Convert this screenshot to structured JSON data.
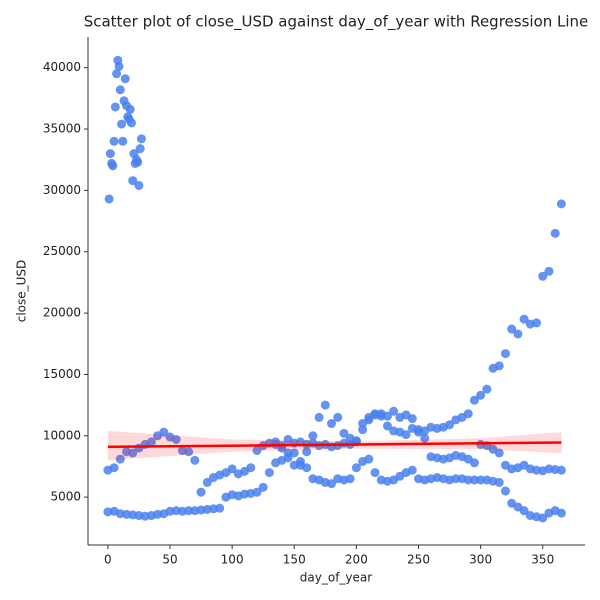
{
  "chart_data": {
    "type": "scatter",
    "title": "Scatter plot of close_USD against day_of_year with Regression Line",
    "xlabel": "day_of_year",
    "ylabel": "close_USD",
    "color": "#4a80ee",
    "line_color": "#ff0000",
    "xlim": [
      -16,
      384
    ],
    "ylim": [
      1100,
      42500
    ],
    "xticks": [
      0,
      50,
      100,
      150,
      200,
      250,
      300,
      350
    ],
    "yticks": [
      5000,
      10000,
      15000,
      20000,
      25000,
      30000,
      35000,
      40000
    ],
    "x": [
      0,
      5,
      10,
      15,
      20,
      25,
      30,
      35,
      40,
      45,
      50,
      55,
      60,
      65,
      70,
      75,
      80,
      85,
      90,
      95,
      100,
      105,
      110,
      115,
      120,
      125,
      130,
      135,
      140,
      145,
      150,
      155,
      160,
      165,
      170,
      175,
      180,
      185,
      190,
      195,
      200,
      205,
      210,
      215,
      220,
      225,
      230,
      235,
      240,
      245,
      250,
      255,
      260,
      265,
      270,
      275,
      280,
      285,
      290,
      295,
      300,
      305,
      310,
      315,
      320,
      325,
      330,
      335,
      340,
      345,
      350,
      355,
      360,
      365,
      0,
      5,
      10,
      15,
      20,
      25,
      30,
      35,
      40,
      45,
      50,
      55,
      60,
      65,
      70,
      75,
      80,
      85,
      90,
      95,
      100,
      105,
      110,
      115,
      120,
      125,
      130,
      135,
      140,
      145,
      150,
      155,
      160,
      165,
      170,
      175,
      180,
      185,
      190,
      195,
      200,
      205,
      210,
      215,
      220,
      225,
      230,
      235,
      240,
      245,
      250,
      255,
      260,
      265,
      270,
      275,
      280,
      285,
      290,
      295,
      300,
      305,
      310,
      315,
      320,
      325,
      330,
      335,
      340,
      345,
      350,
      355,
      360,
      365,
      135,
      140,
      145,
      150,
      155,
      160,
      165,
      170,
      175,
      180,
      185,
      190,
      195,
      200,
      205,
      210,
      215,
      220,
      225,
      230,
      235,
      240,
      245,
      250,
      255,
      260,
      265,
      270,
      275,
      280,
      285,
      290,
      295,
      300,
      305,
      310,
      315,
      320,
      325,
      330,
      335,
      340,
      345,
      350,
      355,
      360,
      365,
      1,
      2,
      3,
      4,
      5,
      6,
      7,
      8,
      9,
      10,
      11,
      12,
      13,
      14,
      15,
      16,
      17,
      18,
      19,
      20,
      21,
      22,
      23,
      24,
      25,
      26,
      27
    ],
    "values": [
      3800,
      3850,
      3650,
      3600,
      3550,
      3500,
      3450,
      3500,
      3600,
      3650,
      3850,
      3900,
      3850,
      3900,
      3900,
      3950,
      4000,
      4050,
      4100,
      5000,
      5200,
      5100,
      5250,
      5300,
      5400,
      5800,
      7000,
      7800,
      8000,
      8200,
      8600,
      7900,
      8700,
      10000,
      11500,
      12500,
      11000,
      11500,
      10200,
      9800,
      9600,
      10500,
      11500,
      11800,
      11600,
      10800,
      10400,
      10300,
      10100,
      10600,
      10300,
      9800,
      8300,
      8200,
      8100,
      8200,
      8400,
      8300,
      8100,
      7800,
      9300,
      9200,
      8900,
      8600,
      7600,
      7300,
      7400,
      7600,
      7300,
      7200,
      7150,
      7300,
      7250,
      7200,
      7200,
      7400,
      8100,
      8700,
      8600,
      9000,
      9300,
      9500,
      10000,
      10300,
      9900,
      9700,
      8800,
      8700,
      8000,
      5400,
      6200,
      6600,
      6800,
      7000,
      7300,
      6900,
      7100,
      7400,
      8800,
      9200,
      9400,
      9500,
      9200,
      9700,
      9400,
      9500,
      9300,
      9400,
      9200,
      9300,
      9100,
      9200,
      9400,
      9300,
      9500,
      11000,
      11300,
      11700,
      11800,
      11600,
      12000,
      11500,
      11700,
      11400,
      10500,
      10400,
      10700,
      10600,
      10700,
      10900,
      11300,
      11500,
      11800,
      12900,
      13300,
      13800,
      15500,
      15700,
      16700,
      18700,
      18300,
      19500,
      19100,
      19200,
      23000,
      23400,
      26500,
      28900,
      9300,
      9000,
      8600,
      7600,
      7600,
      7400,
      6500,
      6400,
      6200,
      6100,
      6500,
      6400,
      6500,
      7400,
      7900,
      8100,
      7000,
      6400,
      6300,
      6400,
      6700,
      7000,
      7200,
      6500,
      6400,
      6500,
      6600,
      6500,
      6400,
      6500,
      6500,
      6400,
      6400,
      6400,
      6400,
      6300,
      6200,
      5500,
      4500,
      4200,
      3900,
      3500,
      3400,
      3300,
      3700,
      3900,
      3700,
      29300,
      33000,
      32200,
      32000,
      34000,
      36800,
      39500,
      40600,
      40100,
      38200,
      35400,
      34000,
      37300,
      39100,
      36900,
      36000,
      35800,
      36600,
      35500,
      30800,
      33000,
      32200,
      32500,
      32300,
      30400,
      33400,
      34200
    ],
    "regression": {
      "x": [
        0,
        365
      ],
      "values": [
        9100,
        9450
      ]
    },
    "ci": {
      "x": [
        0,
        100,
        200,
        300,
        365
      ],
      "lower": [
        8000,
        8700,
        8950,
        8900,
        8600
      ],
      "upper": [
        10400,
        9700,
        9550,
        9800,
        10300
      ]
    }
  }
}
